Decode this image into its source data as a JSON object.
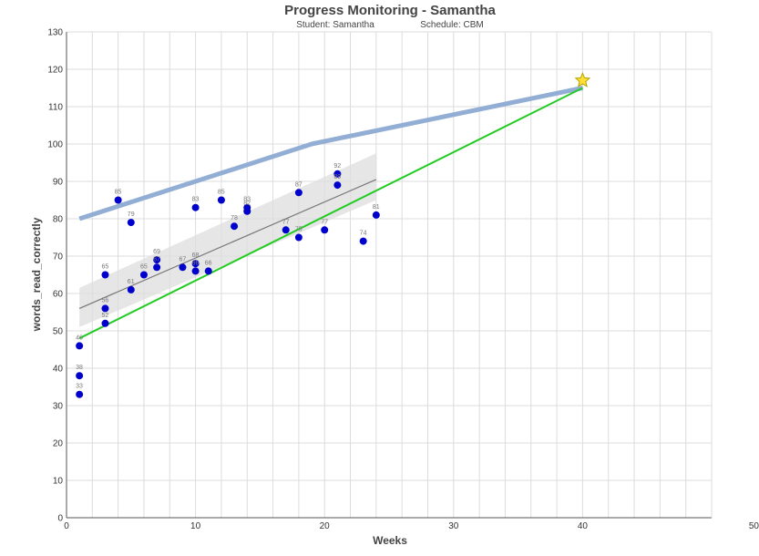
{
  "chart_data": {
    "type": "scatter",
    "title": "Progress Monitoring - Samantha",
    "subtitle_student": "Student: Samantha",
    "subtitle_schedule": "Schedule: CBM",
    "xlabel": "Weeks",
    "ylabel": "words_read_correctly",
    "xlim": [
      0,
      50
    ],
    "ylim": [
      0,
      130
    ],
    "x_ticks": [
      0,
      10,
      20,
      30,
      40,
      50
    ],
    "x_tick_labels": [
      "0",
      "10",
      "20",
      "30",
      "40",
      "50"
    ],
    "y_ticks": [
      0,
      10,
      20,
      30,
      40,
      50,
      60,
      70,
      80,
      90,
      100,
      110,
      120,
      130
    ],
    "y_tick_labels": [
      "0",
      "10",
      "20",
      "30",
      "40",
      "50",
      "60",
      "70",
      "80",
      "90",
      "100",
      "110",
      "120",
      "130"
    ],
    "grid": true,
    "points": [
      {
        "x": 1,
        "y": 33,
        "label": "33"
      },
      {
        "x": 1,
        "y": 38,
        "label": "38"
      },
      {
        "x": 1,
        "y": 46,
        "label": "46"
      },
      {
        "x": 3,
        "y": 52,
        "label": "52"
      },
      {
        "x": 3,
        "y": 56,
        "label": "56"
      },
      {
        "x": 3,
        "y": 65,
        "label": "65"
      },
      {
        "x": 4,
        "y": 85,
        "label": "85"
      },
      {
        "x": 5,
        "y": 61,
        "label": "61"
      },
      {
        "x": 5,
        "y": 79,
        "label": "79"
      },
      {
        "x": 6,
        "y": 65,
        "label": "65"
      },
      {
        "x": 7,
        "y": 67,
        "label": "67"
      },
      {
        "x": 7,
        "y": 69,
        "label": "69"
      },
      {
        "x": 9,
        "y": 67,
        "label": "67"
      },
      {
        "x": 10,
        "y": 66,
        "label": "66"
      },
      {
        "x": 10,
        "y": 68,
        "label": "68"
      },
      {
        "x": 10,
        "y": 83,
        "label": "83"
      },
      {
        "x": 11,
        "y": 66,
        "label": "66"
      },
      {
        "x": 12,
        "y": 85,
        "label": "85"
      },
      {
        "x": 13,
        "y": 78,
        "label": "78"
      },
      {
        "x": 14,
        "y": 82,
        "label": "82"
      },
      {
        "x": 14,
        "y": 83,
        "label": "83"
      },
      {
        "x": 17,
        "y": 77,
        "label": "77"
      },
      {
        "x": 18,
        "y": 75,
        "label": "75"
      },
      {
        "x": 18,
        "y": 87,
        "label": "87"
      },
      {
        "x": 20,
        "y": 77,
        "label": "77"
      },
      {
        "x": 21,
        "y": 89,
        "label": "89"
      },
      {
        "x": 21,
        "y": 92,
        "label": "92"
      },
      {
        "x": 23,
        "y": 74,
        "label": "74"
      },
      {
        "x": 24,
        "y": 81,
        "label": "81"
      }
    ],
    "trend_line": {
      "x": [
        1,
        24
      ],
      "y": [
        56,
        90.5
      ]
    },
    "trend_band": {
      "x": [
        1,
        24
      ],
      "upper": [
        61.5,
        97.5
      ],
      "lower": [
        51,
        85
      ]
    },
    "benchmark_line": {
      "x": [
        1,
        19,
        40
      ],
      "y": [
        80,
        100,
        115
      ]
    },
    "aimline": {
      "x": [
        1,
        40
      ],
      "y": [
        48,
        115
      ]
    },
    "goal": {
      "x": 40,
      "y": 117
    },
    "colors": {
      "points": "#0000cc",
      "trend": "#777777",
      "band": "#dddddd",
      "benchmark": "#92aed4",
      "aimline": "#22cc22",
      "goal_fill": "#ffe033",
      "goal_stroke": "#b8a000",
      "grid": "#dcdcdc",
      "axis": "#555555"
    }
  }
}
